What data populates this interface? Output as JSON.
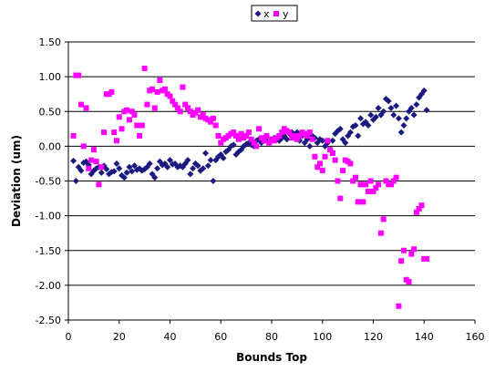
{
  "chart_data": {
    "type": "scatter",
    "xlabel": "Bounds Top",
    "ylabel": "Deviation (um)",
    "xlim": [
      0,
      160
    ],
    "ylim": [
      -2.5,
      1.5
    ],
    "x_ticks": [
      0,
      20,
      40,
      60,
      80,
      100,
      120,
      140,
      160
    ],
    "y_ticks": [
      1.5,
      1.0,
      0.5,
      0.0,
      -0.5,
      -1.0,
      -1.5,
      -2.0,
      -2.5
    ],
    "x_tick_labels": [
      "0",
      "20",
      "40",
      "60",
      "80",
      "100",
      "120",
      "140",
      "160"
    ],
    "y_tick_labels": [
      "1.50",
      "1.00",
      "0.50",
      "0.00",
      "-0.50",
      "-1.00",
      "-1.50",
      "-2.00",
      "-2.50"
    ],
    "grid": "horizontal",
    "legend_position": "top",
    "series": [
      {
        "name": "x",
        "color": "#1a1a80",
        "marker": "diamond",
        "points": [
          [
            2,
            -0.21
          ],
          [
            3,
            -0.5
          ],
          [
            4,
            -0.3
          ],
          [
            5,
            -0.35
          ],
          [
            6,
            -0.24
          ],
          [
            7,
            -0.22
          ],
          [
            8,
            -0.27
          ],
          [
            9,
            -0.4
          ],
          [
            10,
            -0.35
          ],
          [
            11,
            -0.32
          ],
          [
            12,
            -0.3
          ],
          [
            13,
            -0.38
          ],
          [
            14,
            -0.28
          ],
          [
            15,
            -0.33
          ],
          [
            16,
            -0.4
          ],
          [
            17,
            -0.37
          ],
          [
            18,
            -0.36
          ],
          [
            19,
            -0.25
          ],
          [
            20,
            -0.32
          ],
          [
            21,
            -0.42
          ],
          [
            22,
            -0.45
          ],
          [
            23,
            -0.38
          ],
          [
            24,
            -0.3
          ],
          [
            25,
            -0.36
          ],
          [
            26,
            -0.28
          ],
          [
            27,
            -0.34
          ],
          [
            28,
            -0.32
          ],
          [
            29,
            -0.35
          ],
          [
            30,
            -0.33
          ],
          [
            31,
            -0.3
          ],
          [
            32,
            -0.25
          ],
          [
            33,
            -0.4
          ],
          [
            34,
            -0.45
          ],
          [
            35,
            -0.32
          ],
          [
            36,
            -0.22
          ],
          [
            37,
            -0.27
          ],
          [
            38,
            -0.25
          ],
          [
            39,
            -0.3
          ],
          [
            40,
            -0.2
          ],
          [
            41,
            -0.26
          ],
          [
            42,
            -0.25
          ],
          [
            43,
            -0.3
          ],
          [
            44,
            -0.28
          ],
          [
            45,
            -0.3
          ],
          [
            46,
            -0.25
          ],
          [
            47,
            -0.2
          ],
          [
            48,
            -0.4
          ],
          [
            49,
            -0.32
          ],
          [
            50,
            -0.25
          ],
          [
            51,
            -0.28
          ],
          [
            52,
            -0.35
          ],
          [
            53,
            -0.32
          ],
          [
            54,
            -0.1
          ],
          [
            55,
            -0.28
          ],
          [
            56,
            -0.2
          ],
          [
            57,
            -0.5
          ],
          [
            58,
            -0.2
          ],
          [
            59,
            -0.15
          ],
          [
            60,
            -0.12
          ],
          [
            61,
            -0.17
          ],
          [
            62,
            -0.08
          ],
          [
            63,
            -0.05
          ],
          [
            64,
            0.0
          ],
          [
            65,
            0.02
          ],
          [
            66,
            -0.12
          ],
          [
            67,
            -0.08
          ],
          [
            68,
            -0.05
          ],
          [
            69,
            0.0
          ],
          [
            70,
            0.03
          ],
          [
            71,
            0.05
          ],
          [
            72,
            0.02
          ],
          [
            73,
            0.0
          ],
          [
            74,
            0.08
          ],
          [
            75,
            0.1
          ],
          [
            76,
            0.05
          ],
          [
            77,
            0.12
          ],
          [
            78,
            0.08
          ],
          [
            79,
            0.05
          ],
          [
            80,
            0.1
          ],
          [
            81,
            0.12
          ],
          [
            82,
            0.1
          ],
          [
            83,
            0.08
          ],
          [
            84,
            0.12
          ],
          [
            85,
            0.15
          ],
          [
            86,
            0.1
          ],
          [
            87,
            0.18
          ],
          [
            88,
            0.2
          ],
          [
            89,
            0.15
          ],
          [
            90,
            0.2
          ],
          [
            91,
            0.08
          ],
          [
            92,
            0.15
          ],
          [
            93,
            0.05
          ],
          [
            94,
            0.1
          ],
          [
            95,
            0.0
          ],
          [
            96,
            0.15
          ],
          [
            97,
            0.12
          ],
          [
            98,
            0.05
          ],
          [
            99,
            0.1
          ],
          [
            100,
            0.08
          ],
          [
            101,
            0.0
          ],
          [
            102,
            0.05
          ],
          [
            103,
            -0.05
          ],
          [
            104,
            0.08
          ],
          [
            105,
            0.18
          ],
          [
            106,
            0.22
          ],
          [
            107,
            0.25
          ],
          [
            108,
            0.1
          ],
          [
            109,
            0.05
          ],
          [
            110,
            0.15
          ],
          [
            111,
            0.2
          ],
          [
            112,
            0.28
          ],
          [
            113,
            0.3
          ],
          [
            114,
            0.15
          ],
          [
            115,
            0.4
          ],
          [
            116,
            0.32
          ],
          [
            117,
            0.35
          ],
          [
            118,
            0.3
          ],
          [
            119,
            0.45
          ],
          [
            120,
            0.38
          ],
          [
            121,
            0.42
          ],
          [
            122,
            0.55
          ],
          [
            123,
            0.45
          ],
          [
            124,
            0.5
          ],
          [
            125,
            0.68
          ],
          [
            126,
            0.65
          ],
          [
            127,
            0.55
          ],
          [
            128,
            0.45
          ],
          [
            129,
            0.58
          ],
          [
            130,
            0.4
          ],
          [
            131,
            0.2
          ],
          [
            132,
            0.3
          ],
          [
            133,
            0.4
          ],
          [
            134,
            0.5
          ],
          [
            135,
            0.55
          ],
          [
            136,
            0.45
          ],
          [
            137,
            0.6
          ],
          [
            138,
            0.7
          ],
          [
            139,
            0.75
          ],
          [
            140,
            0.8
          ],
          [
            141,
            0.52
          ]
        ]
      },
      {
        "name": "y",
        "color": "#ff00ff",
        "marker": "square",
        "points": [
          [
            2,
            0.15
          ],
          [
            3,
            1.02
          ],
          [
            4,
            1.02
          ],
          [
            5,
            0.6
          ],
          [
            6,
            0.0
          ],
          [
            7,
            0.55
          ],
          [
            8,
            -0.32
          ],
          [
            9,
            -0.2
          ],
          [
            10,
            -0.05
          ],
          [
            11,
            -0.22
          ],
          [
            12,
            -0.55
          ],
          [
            13,
            -0.3
          ],
          [
            14,
            0.2
          ],
          [
            15,
            0.75
          ],
          [
            16,
            0.75
          ],
          [
            17,
            0.78
          ],
          [
            18,
            0.2
          ],
          [
            19,
            0.08
          ],
          [
            20,
            0.42
          ],
          [
            21,
            0.25
          ],
          [
            22,
            0.5
          ],
          [
            23,
            0.52
          ],
          [
            24,
            0.38
          ],
          [
            25,
            0.5
          ],
          [
            26,
            0.45
          ],
          [
            27,
            0.3
          ],
          [
            28,
            0.15
          ],
          [
            29,
            0.3
          ],
          [
            30,
            1.12
          ],
          [
            31,
            0.6
          ],
          [
            32,
            0.8
          ],
          [
            33,
            0.82
          ],
          [
            34,
            0.55
          ],
          [
            35,
            0.78
          ],
          [
            36,
            0.95
          ],
          [
            37,
            0.8
          ],
          [
            38,
            0.82
          ],
          [
            39,
            0.75
          ],
          [
            40,
            0.72
          ],
          [
            41,
            0.65
          ],
          [
            42,
            0.6
          ],
          [
            43,
            0.55
          ],
          [
            44,
            0.5
          ],
          [
            45,
            0.85
          ],
          [
            46,
            0.6
          ],
          [
            47,
            0.55
          ],
          [
            48,
            0.5
          ],
          [
            49,
            0.45
          ],
          [
            50,
            0.48
          ],
          [
            51,
            0.52
          ],
          [
            52,
            0.42
          ],
          [
            53,
            0.45
          ],
          [
            54,
            0.4
          ],
          [
            55,
            0.38
          ],
          [
            56,
            0.35
          ],
          [
            57,
            0.4
          ],
          [
            58,
            0.3
          ],
          [
            59,
            0.15
          ],
          [
            60,
            0.05
          ],
          [
            61,
            0.1
          ],
          [
            62,
            0.12
          ],
          [
            63,
            0.15
          ],
          [
            64,
            0.18
          ],
          [
            65,
            0.2
          ],
          [
            66,
            0.15
          ],
          [
            67,
            0.1
          ],
          [
            68,
            0.18
          ],
          [
            69,
            0.12
          ],
          [
            70,
            0.15
          ],
          [
            71,
            0.2
          ],
          [
            72,
            0.1
          ],
          [
            73,
            0.05
          ],
          [
            74,
            0.0
          ],
          [
            75,
            0.25
          ],
          [
            76,
            0.12
          ],
          [
            77,
            0.08
          ],
          [
            78,
            0.15
          ],
          [
            79,
            0.05
          ],
          [
            80,
            0.1
          ],
          [
            81,
            0.08
          ],
          [
            82,
            0.12
          ],
          [
            83,
            0.15
          ],
          [
            84,
            0.2
          ],
          [
            85,
            0.25
          ],
          [
            86,
            0.22
          ],
          [
            87,
            0.2
          ],
          [
            88,
            0.12
          ],
          [
            89,
            0.15
          ],
          [
            90,
            0.1
          ],
          [
            91,
            0.15
          ],
          [
            92,
            0.2
          ],
          [
            93,
            0.18
          ],
          [
            94,
            0.15
          ],
          [
            95,
            0.2
          ],
          [
            96,
            0.1
          ],
          [
            97,
            -0.15
          ],
          [
            98,
            -0.3
          ],
          [
            99,
            -0.25
          ],
          [
            100,
            -0.35
          ],
          [
            101,
            -0.15
          ],
          [
            102,
            0.08
          ],
          [
            103,
            -0.05
          ],
          [
            104,
            -0.1
          ],
          [
            105,
            -0.2
          ],
          [
            106,
            -0.5
          ],
          [
            107,
            -0.75
          ],
          [
            108,
            -0.35
          ],
          [
            109,
            -0.2
          ],
          [
            110,
            -0.22
          ],
          [
            111,
            -0.25
          ],
          [
            112,
            -0.5
          ],
          [
            113,
            -0.45
          ],
          [
            114,
            -0.8
          ],
          [
            115,
            -0.55
          ],
          [
            116,
            -0.8
          ],
          [
            117,
            -0.55
          ],
          [
            118,
            -0.65
          ],
          [
            119,
            -0.5
          ],
          [
            120,
            -0.65
          ],
          [
            121,
            -0.6
          ],
          [
            122,
            -0.55
          ],
          [
            123,
            -1.25
          ],
          [
            124,
            -1.05
          ],
          [
            125,
            -0.5
          ],
          [
            126,
            -0.55
          ],
          [
            127,
            -0.55
          ],
          [
            128,
            -0.5
          ],
          [
            129,
            -0.45
          ],
          [
            130,
            -2.3
          ],
          [
            131,
            -1.65
          ],
          [
            132,
            -1.5
          ],
          [
            133,
            -1.92
          ],
          [
            134,
            -1.95
          ],
          [
            135,
            -1.55
          ],
          [
            136,
            -1.48
          ],
          [
            137,
            -0.95
          ],
          [
            138,
            -0.9
          ],
          [
            139,
            -0.85
          ],
          [
            140,
            -1.62
          ],
          [
            141,
            -1.62
          ]
        ]
      }
    ]
  }
}
